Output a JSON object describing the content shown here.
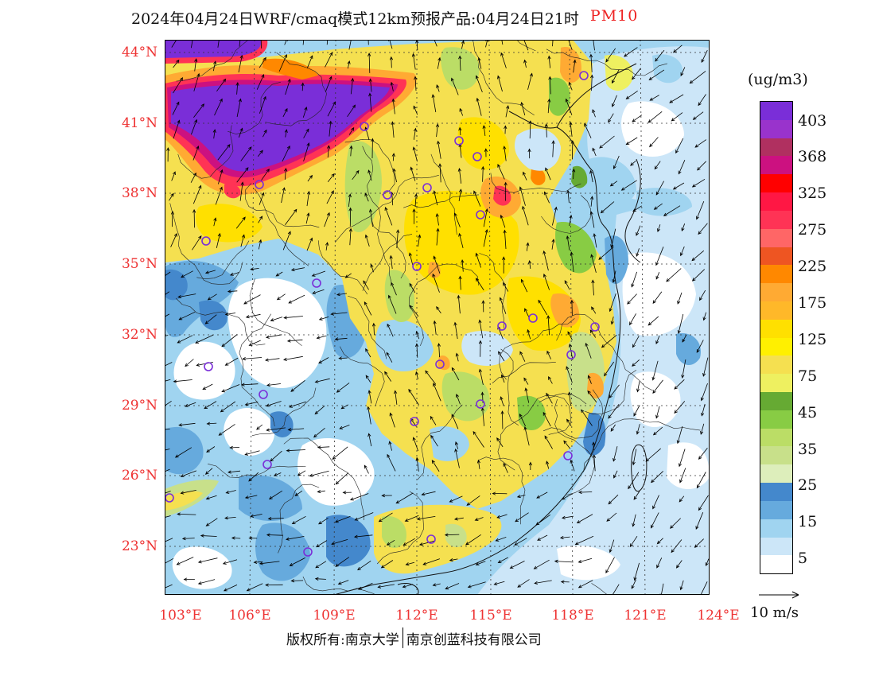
{
  "title": {
    "main": "2024年04月24日WRF/cmaq模式12km预报产品:04月24日21时",
    "variable": "PM10"
  },
  "axes": {
    "latitude_labels": [
      "44°N",
      "41°N",
      "38°N",
      "35°N",
      "32°N",
      "29°N",
      "26°N",
      "23°N"
    ],
    "longitude_labels": [
      "103°E",
      "106°E",
      "109°E",
      "112°E",
      "115°E",
      "118°E",
      "121°E",
      "124°E"
    ]
  },
  "colorbar": {
    "unit": "(ug/m3)",
    "labels": [
      "403",
      "368",
      "325",
      "275",
      "225",
      "175",
      "125",
      "75",
      "45",
      "35",
      "25",
      "15",
      "5"
    ],
    "colors": [
      "#7a2ed8",
      "#9933cc",
      "#b03060",
      "#cc1180",
      "#ff0000",
      "#ff1744",
      "#ff3355",
      "#ff6666",
      "#ee5522",
      "#ff8800",
      "#ffaa33",
      "#ffb829",
      "#ffe000",
      "#fff000",
      "#f5e050",
      "#eef060",
      "#66aa33",
      "#88cc44",
      "#bbdd66",
      "#c8e08a",
      "#ddeebb",
      "#4488cc",
      "#66aadd",
      "#a0d4f0",
      "#cce6f8",
      "#ffffff"
    ]
  },
  "wind_reference": {
    "label": "10 m/s"
  },
  "copyright": {
    "owner": "版权所有:南京大学",
    "partner": "南京创蓝科技有限公司"
  },
  "style": {
    "title_accent_color": "#ee2222",
    "axis_label_color": "#ee3333",
    "city_marker_color": "#7a2ed8"
  }
}
